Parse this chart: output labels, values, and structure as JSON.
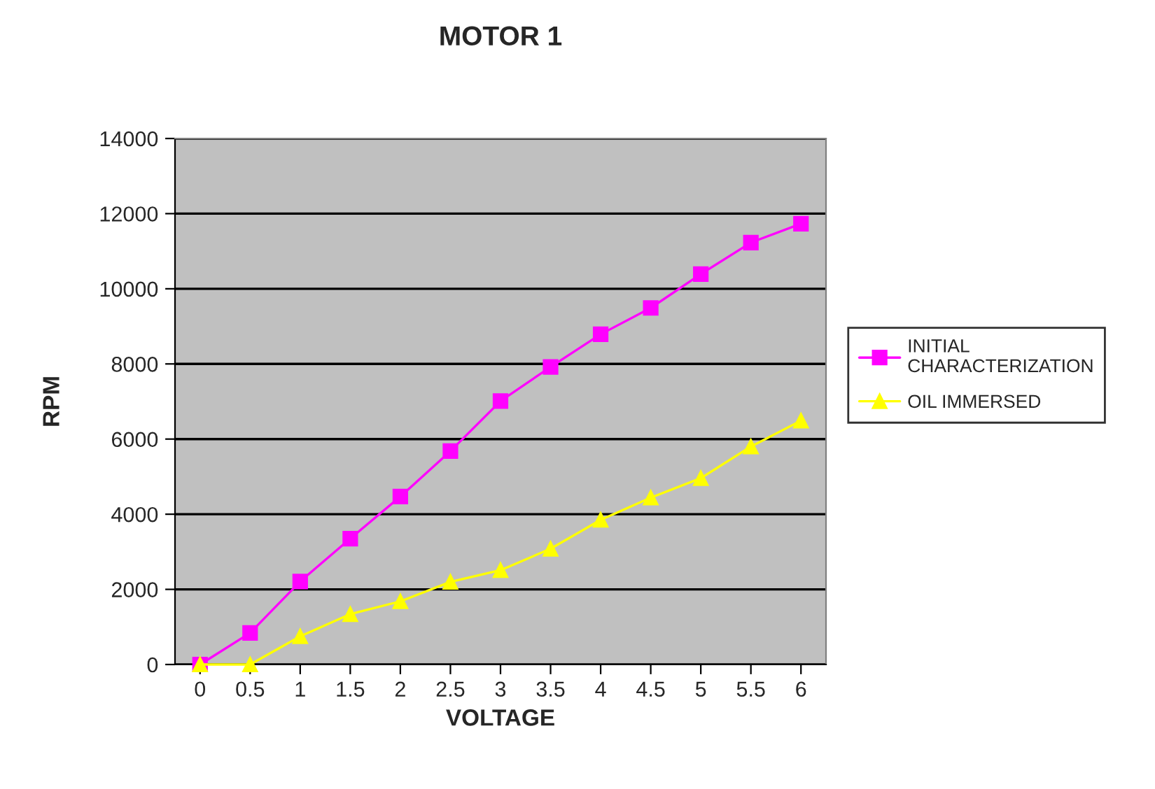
{
  "chart_data": {
    "type": "line",
    "title": "MOTOR 1",
    "xlabel": "VOLTAGE",
    "ylabel": "RPM",
    "categories": [
      "0",
      "0.5",
      "1",
      "1.5",
      "2",
      "2.5",
      "3",
      "3.5",
      "4",
      "4.5",
      "5",
      "5.5",
      "6"
    ],
    "series": [
      {
        "name": "INITIAL CHARACTERIZATION",
        "color": "#ff00ff",
        "marker": "square",
        "values": [
          0,
          840,
          2210,
          3350,
          4470,
          5680,
          7010,
          7920,
          8790,
          9490,
          10390,
          11230,
          11730
        ]
      },
      {
        "name": "OIL IMMERSED",
        "color": "#ffff00",
        "marker": "triangle",
        "values": [
          0,
          0,
          750,
          1340,
          1680,
          2200,
          2510,
          3080,
          3850,
          4440,
          4960,
          5800,
          6490
        ]
      }
    ],
    "ylim": [
      0,
      14000
    ],
    "yticks": [
      0,
      2000,
      4000,
      6000,
      8000,
      10000,
      12000,
      14000
    ],
    "grid": "y",
    "legend": "right",
    "line_style": "solid"
  }
}
